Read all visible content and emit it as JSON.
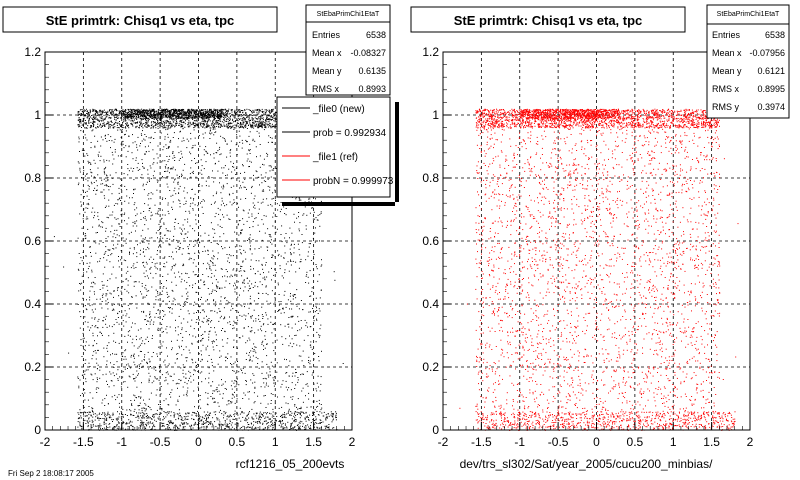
{
  "page": {
    "background": "#ffffff",
    "footer_text": "Fri Sep 2 18:08:17 2005"
  },
  "chart_data": [
    {
      "type": "scatter",
      "title": "StE primtrk: Chisq1 vs eta, tpc",
      "xlabel": "rcf1216_05_200evts",
      "ylabel": "",
      "xlim": [
        -2,
        2
      ],
      "ylim": [
        0,
        1.2
      ],
      "x_ticks": [
        -2,
        -1.5,
        -1,
        -0.5,
        0,
        0.5,
        1,
        1.5,
        2
      ],
      "x_tick_labels": [
        "-2",
        "-1.5",
        "-1",
        "-0.5",
        "0",
        "0.5",
        "1",
        "1.5",
        "2"
      ],
      "y_ticks": [
        0,
        0.2,
        0.4,
        0.6,
        0.8,
        1,
        1.2
      ],
      "y_tick_labels": [
        "0",
        "0.2",
        "0.4",
        "0.6",
        "0.8",
        "1",
        "1.2"
      ],
      "grid": true,
      "point_color": "#000000",
      "stats": {
        "name": "StEbaPrimChi1EtaT",
        "rows": [
          {
            "label": "Entries",
            "value": "6538"
          },
          {
            "label": "Mean x",
            "value": "-0.08327"
          },
          {
            "label": "Mean y",
            "value": "0.6135"
          },
          {
            "label": "RMS x",
            "value": "0.8993"
          }
        ]
      },
      "legend": {
        "placement": "top-right",
        "entries": [
          {
            "label": "_file0 (new)",
            "color": "#000000"
          },
          {
            "label": "prob = 0.992934",
            "color": "#000000"
          },
          {
            "label": "_file1 (ref)",
            "color": "#ff0000"
          },
          {
            "label": "probN = 0.999973",
            "color": "#ff0000"
          }
        ]
      },
      "series": [
        {
          "distribution": [
            {
              "x_range": [
                -1.58,
                1.6
              ],
              "y_range": [
                0.96,
                1.02
              ],
              "count": 2000
            },
            {
              "x_range": [
                -1.0,
                0.3
              ],
              "y_range": [
                0.99,
                1.02
              ],
              "count": 700
            },
            {
              "x_range": [
                -1.58,
                1.8
              ],
              "y_range": [
                0.0,
                0.06
              ],
              "count": 900
            },
            {
              "x_range": [
                -1.58,
                1.6
              ],
              "y_range": [
                0.06,
                0.96
              ],
              "count": 2900
            },
            {
              "x_range": [
                -1.9,
                1.9
              ],
              "y_range": [
                0.0,
                1.0
              ],
              "count": 40
            }
          ]
        }
      ]
    },
    {
      "type": "scatter",
      "title": "StE primtrk: Chisq1 vs eta, tpc",
      "xlabel": "dev/trs_sl302/Sat/year_2005/cucu200_minbias/",
      "ylabel": "",
      "xlim": [
        -2,
        2
      ],
      "ylim": [
        0,
        1.2
      ],
      "x_ticks": [
        -2,
        -1.5,
        -1,
        -0.5,
        0,
        0.5,
        1,
        1.5,
        2
      ],
      "x_tick_labels": [
        "-2",
        "-1.5",
        "-1",
        "-0.5",
        "0",
        "0.5",
        "1",
        "1.5",
        "2"
      ],
      "y_ticks": [
        0,
        0.2,
        0.4,
        0.6,
        0.8,
        1,
        1.2
      ],
      "y_tick_labels": [
        "0",
        "0.2",
        "0.4",
        "0.6",
        "0.8",
        "1",
        "1.2"
      ],
      "grid": true,
      "point_color": "#ff0000",
      "stats": {
        "name": "StEbaPrimChi1EtaT",
        "rows": [
          {
            "label": "Entries",
            "value": "6538"
          },
          {
            "label": "Mean x",
            "value": "-0.07956"
          },
          {
            "label": "Mean y",
            "value": "0.6121"
          },
          {
            "label": "RMS x",
            "value": "0.8995"
          },
          {
            "label": "RMS y",
            "value": "0.3974"
          }
        ]
      },
      "series": [
        {
          "distribution": [
            {
              "x_range": [
                -1.58,
                1.6
              ],
              "y_range": [
                0.96,
                1.02
              ],
              "count": 2000
            },
            {
              "x_range": [
                -1.0,
                0.3
              ],
              "y_range": [
                0.99,
                1.02
              ],
              "count": 700
            },
            {
              "x_range": [
                -1.58,
                1.8
              ],
              "y_range": [
                0.0,
                0.06
              ],
              "count": 900
            },
            {
              "x_range": [
                -1.58,
                1.6
              ],
              "y_range": [
                0.06,
                0.96
              ],
              "count": 2900
            },
            {
              "x_range": [
                -1.9,
                1.9
              ],
              "y_range": [
                0.0,
                1.0
              ],
              "count": 40
            }
          ]
        }
      ]
    }
  ]
}
